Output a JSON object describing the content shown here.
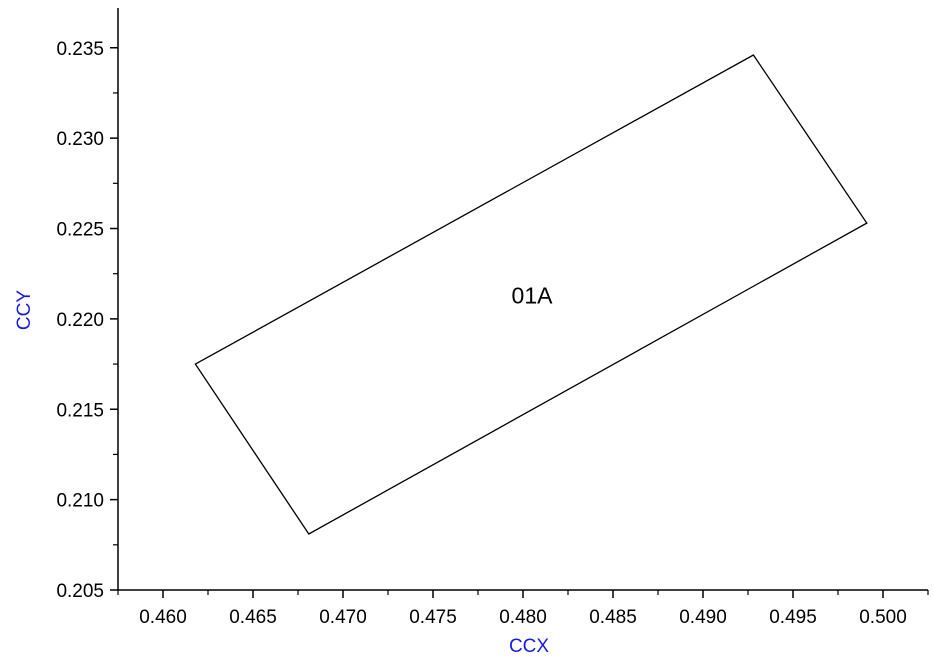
{
  "chart_data": {
    "type": "line",
    "title": "",
    "xlabel": "CCX",
    "ylabel": "CCY",
    "xlim": [
      0.4575,
      0.5025
    ],
    "ylim": [
      0.205,
      0.2372
    ],
    "x_ticks": [
      "0.460",
      "0.465",
      "0.470",
      "0.475",
      "0.480",
      "0.485",
      "0.490",
      "0.495",
      "0.500"
    ],
    "y_ticks": [
      "0.205",
      "0.210",
      "0.215",
      "0.220",
      "0.225",
      "0.230",
      "0.235"
    ],
    "grid": false,
    "series": [
      {
        "name": "01A",
        "closed": true,
        "points": [
          [
            0.4618,
            0.2175
          ],
          [
            0.4928,
            0.2346
          ],
          [
            0.4991,
            0.2253
          ],
          [
            0.4681,
            0.2081
          ]
        ]
      }
    ],
    "annotations": [
      {
        "text": "01A",
        "x": 0.4805,
        "y": 0.2213
      }
    ],
    "colors": {
      "axis": "#000000",
      "axis_title": "#1a1ae6",
      "series": "#000000"
    }
  }
}
